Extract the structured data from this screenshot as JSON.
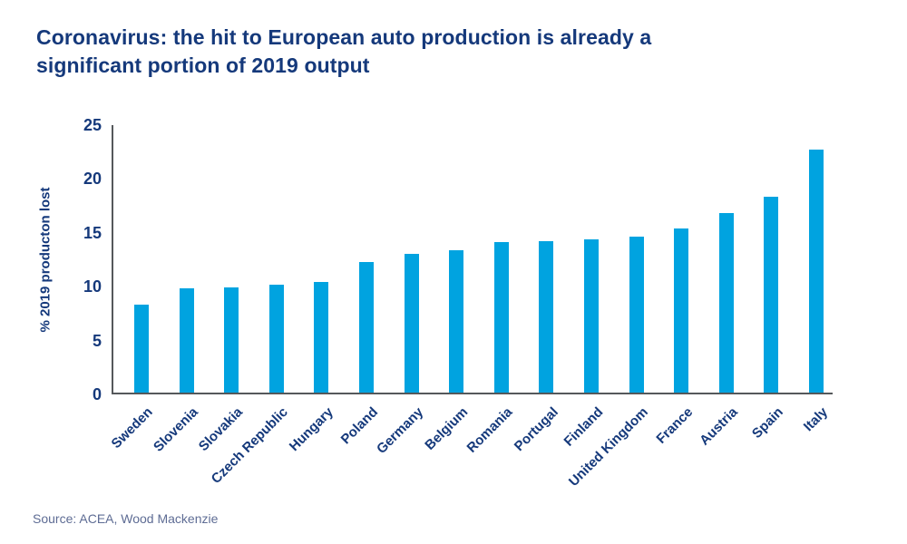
{
  "header": {
    "title_line1": "Coronavirus: the hit to European auto production is already a",
    "title_line2": "significant portion of 2019 output"
  },
  "footer": {
    "source": "Source: ACEA, Wood Mackenzie"
  },
  "colors": {
    "background": "#ffffff",
    "title_navy": "#15397b",
    "bar_blue": "#00a3e0",
    "axis_gray": "#55585b",
    "source_text": "#5e6c94"
  },
  "chart_data": {
    "type": "bar",
    "title": "Coronavirus: the hit to European auto production is already a significant portion of 2019 output",
    "xlabel": "",
    "ylabel": "% 2019 producton lost",
    "ylim": [
      0,
      25
    ],
    "yticks": [
      0,
      5,
      10,
      15,
      20,
      25
    ],
    "grid": false,
    "legend": false,
    "categories": [
      "Sweden",
      "Slovenia",
      "Slovakia",
      "Czech Republic",
      "Hungary",
      "Poland",
      "Germany",
      "Belgium",
      "Romania",
      "Portugal",
      "Finland",
      "United Kingdom",
      "France",
      "Austria",
      "Spain",
      "Italy"
    ],
    "values": [
      8.2,
      9.7,
      9.8,
      10.0,
      10.3,
      12.1,
      12.9,
      13.2,
      14.0,
      14.1,
      14.2,
      14.5,
      15.2,
      16.7,
      18.2,
      22.6
    ]
  }
}
